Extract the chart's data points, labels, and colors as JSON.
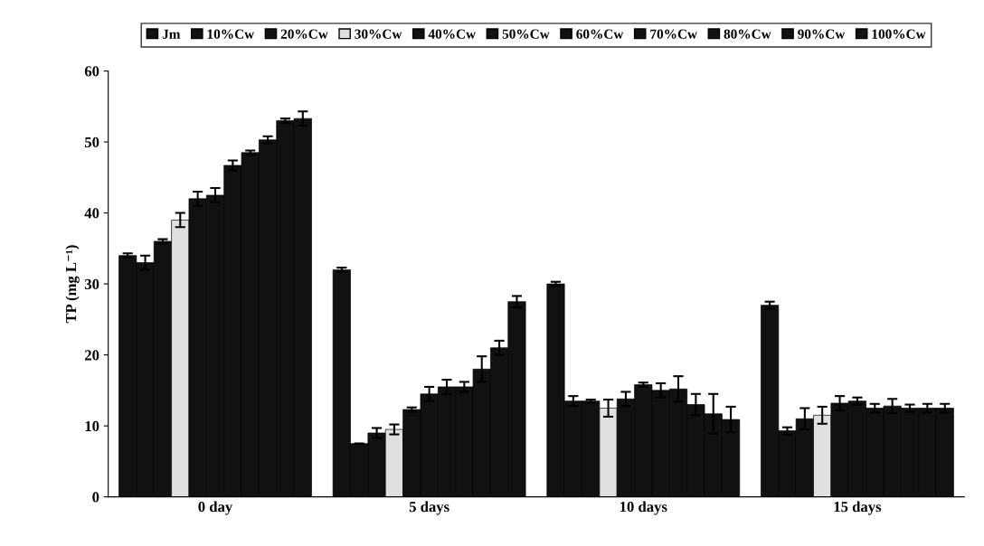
{
  "chart_data": {
    "type": "bar",
    "ylabel": "TP (mg L⁻¹)",
    "categories": [
      "0 day",
      "5 days",
      "10 days",
      "15 days"
    ],
    "ylim": [
      0,
      60
    ],
    "yticks": [
      0,
      10,
      20,
      30,
      40,
      50,
      60
    ],
    "grid": false,
    "legend": "top",
    "series": [
      {
        "name": "Jm",
        "color": "#111111",
        "values": [
          34,
          32,
          30,
          27
        ],
        "errors": [
          0.3,
          0.3,
          0.3,
          0.5
        ]
      },
      {
        "name": "10%Cw",
        "color": "#111111",
        "values": [
          33,
          7.5,
          13.5,
          9.3
        ],
        "errors": [
          1,
          0,
          0.7,
          0.5
        ]
      },
      {
        "name": "20%Cw",
        "color": "#111111",
        "values": [
          36,
          9,
          13.5,
          11
        ],
        "errors": [
          0.3,
          0.7,
          0.2,
          1.5
        ]
      },
      {
        "name": "30%Cw",
        "color": "#e0e0e0",
        "values": [
          39,
          9.5,
          12.5,
          11.5
        ],
        "errors": [
          1,
          0.7,
          1.2,
          1.2
        ]
      },
      {
        "name": "40%Cw",
        "color": "#111111",
        "values": [
          42,
          12.3,
          13.8,
          13.2
        ],
        "errors": [
          1,
          0.3,
          1,
          1
        ]
      },
      {
        "name": "50%Cw",
        "color": "#111111",
        "values": [
          42.5,
          14.5,
          15.8,
          13.5
        ],
        "errors": [
          1,
          1,
          0.3,
          0.5
        ]
      },
      {
        "name": "60%Cw",
        "color": "#111111",
        "values": [
          46.7,
          15.5,
          15,
          12.5
        ],
        "errors": [
          0.7,
          1,
          1,
          0.6
        ]
      },
      {
        "name": "70%Cw",
        "color": "#111111",
        "values": [
          48.5,
          15.5,
          15.2,
          12.8
        ],
        "errors": [
          0.3,
          0.7,
          1.8,
          1
        ]
      },
      {
        "name": "80%Cw",
        "color": "#111111",
        "values": [
          50.3,
          18,
          13,
          12.5
        ],
        "errors": [
          0.5,
          1.8,
          1.5,
          0.5
        ]
      },
      {
        "name": "90%Cw",
        "color": "#111111",
        "values": [
          53,
          21,
          11.7,
          12.5
        ],
        "errors": [
          0.3,
          1,
          2.8,
          0.6
        ]
      },
      {
        "name": "100%Cw",
        "color": "#111111",
        "values": [
          53.3,
          27.5,
          10.9,
          12.5
        ],
        "errors": [
          1,
          0.8,
          1.8,
          0.6
        ]
      }
    ]
  }
}
